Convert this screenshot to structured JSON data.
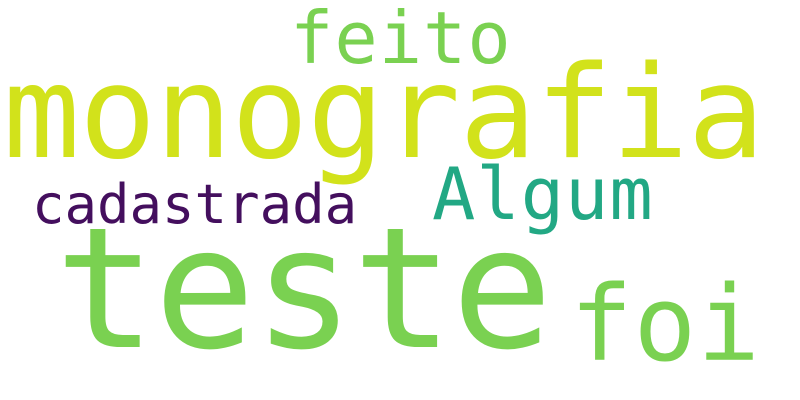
{
  "words": {
    "monografia": {
      "text": "monografia",
      "color": "#d2e21b"
    },
    "teste": {
      "text": "teste",
      "color": "#7ad151"
    },
    "feito": {
      "text": "feito",
      "color": "#7ad151"
    },
    "algum": {
      "text": "Algum",
      "color": "#22a884"
    },
    "cadastrada": {
      "text": "cadastrada",
      "color": "#440f5e"
    },
    "foi": {
      "text": "foi",
      "color": "#7ad151"
    }
  },
  "background_color": "#ffffff"
}
